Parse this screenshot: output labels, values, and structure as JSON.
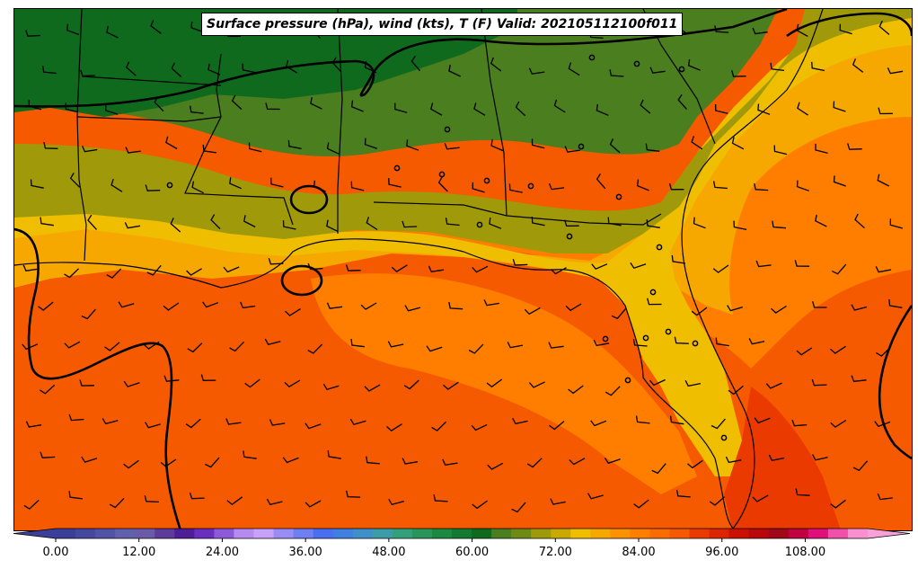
{
  "title": "Surface pressure (hPa), wind (kts), T (F) Valid: 202105112100f011",
  "colorbar": {
    "min": 0,
    "max": 114,
    "step": 3,
    "tick_labels": [
      "0.00",
      "12.00",
      "24.00",
      "36.00",
      "48.00",
      "60.00",
      "72.00",
      "84.00",
      "96.00",
      "108.00"
    ],
    "tick_values": [
      0,
      12,
      24,
      36,
      48,
      60,
      72,
      84,
      96,
      108
    ],
    "colors": [
      "#3b3f9a",
      "#46489f",
      "#5353a6",
      "#6060ad",
      "#6a5aa8",
      "#5e3a9a",
      "#4f1d95",
      "#6b2fc0",
      "#8e59d8",
      "#b68bf0",
      "#c8a2f8",
      "#9a8cf5",
      "#6f7ff2",
      "#4a6ef0",
      "#3f7fe0",
      "#3f8fc8",
      "#3c9ca8",
      "#32a07a",
      "#28965a",
      "#1c8840",
      "#137a30",
      "#0f6a1e",
      "#4a7e1e",
      "#6e8a14",
      "#a09a0a",
      "#c9a800",
      "#f0be00",
      "#f7a800",
      "#fb9200",
      "#ff7e00",
      "#fb6c00",
      "#f65a00",
      "#ea3a00",
      "#dc2400",
      "#cc1000",
      "#b80808",
      "#a00818",
      "#c00040",
      "#e0107a",
      "#f050a8",
      "#f890d0"
    ],
    "extend_low_color": "#3b3f9a",
    "extend_high_color": "#f8a0d8"
  },
  "map": {
    "region": "Southeastern United States and Gulf of Mexico",
    "field_colors": {
      "cold_green": "#0f6a1e",
      "green": "#4a7e1e",
      "olive": "#a09a0a",
      "yellow": "#f0be00",
      "light_orange": "#f7a800",
      "orange": "#ff7e00",
      "dark_orange": "#f65a00",
      "red_orange": "#ea3a00"
    }
  }
}
